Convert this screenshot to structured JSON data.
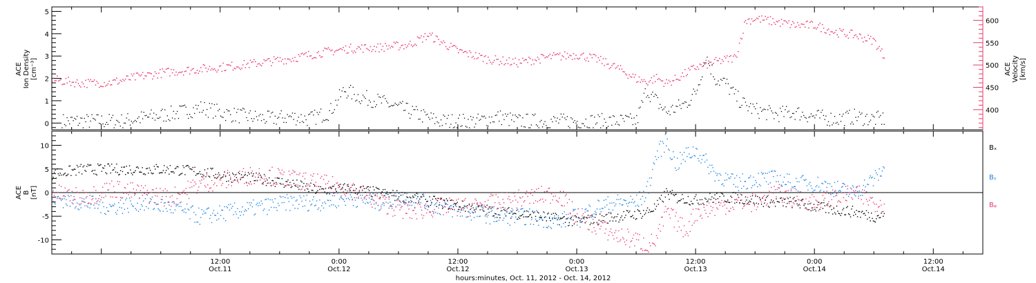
{
  "colors": {
    "density": "#000000",
    "velocity": "#e8386a",
    "bx": "#000000",
    "by": "#1a82e0",
    "bz": "#e8386a"
  },
  "x_axis": {
    "title": "hours:minutes, Oct. 11, 2012 - Oct. 14, 2012",
    "range_hours": [
      -5,
      89
    ],
    "ticks": [
      {
        "hour": 12,
        "time": "12:00",
        "date": "Oct.11"
      },
      {
        "hour": 24,
        "time": "0:00",
        "date": "Oct.12"
      },
      {
        "hour": 36,
        "time": "12:00",
        "date": "Oct.12"
      },
      {
        "hour": 48,
        "time": "0:00",
        "date": "Oct.13"
      },
      {
        "hour": 60,
        "time": "12:00",
        "date": "Oct.13"
      },
      {
        "hour": 72,
        "time": "0:00",
        "date": "Oct.14"
      },
      {
        "hour": 84,
        "time": "12:00",
        "date": "Oct.14"
      }
    ],
    "data_end_hour": 79
  },
  "chart_data": [
    {
      "type": "scatter",
      "panel": "top",
      "left_axis": {
        "label_lines": [
          "ACE",
          "Ion Density",
          "[cm⁻³]"
        ],
        "ylim": [
          -0.3,
          5.2
        ],
        "ticks": [
          "0",
          "1",
          "2",
          "3",
          "4",
          "5"
        ]
      },
      "right_axis": {
        "label_lines": [
          "ACE",
          "Velocity",
          "[km/s]"
        ],
        "ylim": [
          355,
          630
        ],
        "ticks": [
          "400",
          "450",
          "500",
          "550",
          "600"
        ]
      },
      "series": [
        {
          "key": "density",
          "axis": "left",
          "x": [
            -4,
            -1,
            2,
            5,
            8,
            10,
            13,
            15,
            17,
            19,
            21,
            23,
            24.5,
            26,
            28,
            30,
            32,
            34,
            36,
            38,
            40,
            42,
            44,
            46,
            48,
            50,
            52,
            54,
            55,
            57,
            59,
            60,
            61,
            62,
            63,
            64,
            65,
            66,
            68,
            70,
            72,
            74,
            76,
            78,
            79
          ],
          "y": [
            0.1,
            0.1,
            0.1,
            0.3,
            0.5,
            0.7,
            0.4,
            0.3,
            0.2,
            0.3,
            0.2,
            0.5,
            1.5,
            1.2,
            1.0,
            0.7,
            0.4,
            0.1,
            0.1,
            0.1,
            0.3,
            0.1,
            0.1,
            0.1,
            0.1,
            0.1,
            0.1,
            0.1,
            1.5,
            0.5,
            0.9,
            1.4,
            3.0,
            2.0,
            1.8,
            1.2,
            0.8,
            0.6,
            0.4,
            0.5,
            0.3,
            0.2,
            0.3,
            0.2,
            0.2
          ]
        },
        {
          "key": "velocity",
          "axis": "right",
          "x": [
            -5,
            -2,
            1,
            4,
            7,
            10,
            13,
            16,
            19,
            22,
            25,
            28,
            31,
            33,
            36,
            39,
            42,
            45,
            48,
            50,
            52,
            54,
            55,
            56,
            57,
            58,
            60,
            62,
            64,
            65,
            66,
            68,
            70,
            72,
            74,
            76,
            78,
            79
          ],
          "y": [
            468,
            460,
            462,
            476,
            486,
            492,
            498,
            506,
            515,
            528,
            538,
            540,
            546,
            568,
            532,
            514,
            506,
            518,
            524,
            514,
            495,
            470,
            463,
            472,
            460,
            470,
            496,
            508,
            518,
            600,
            605,
            598,
            590,
            590,
            575,
            568,
            555,
            520
          ]
        }
      ]
    },
    {
      "type": "scatter",
      "panel": "bottom",
      "left_axis": {
        "label_lines": [
          "ACE",
          "B",
          "[nT]"
        ],
        "ylim": [
          -13,
          13
        ],
        "ticks": [
          "-10",
          "-5",
          "0",
          "5",
          "10"
        ]
      },
      "zero_line": true,
      "series": [
        {
          "key": "bx",
          "name": "Bₓ",
          "x": [
            -5,
            -2,
            1,
            4,
            7,
            10,
            13,
            16,
            19,
            22,
            25,
            28,
            31,
            34,
            37,
            40,
            43,
            46,
            48,
            50,
            52,
            54,
            55,
            56,
            57,
            58,
            60,
            62,
            64,
            66,
            68,
            70,
            72,
            74,
            76,
            78,
            79
          ],
          "y": [
            4,
            5,
            5,
            5,
            5,
            4.5,
            3.5,
            3,
            2,
            0.5,
            1,
            0,
            -1,
            -2,
            -3,
            -4,
            -4.5,
            -5.5,
            -6,
            -5.5,
            -5,
            -4.5,
            -4,
            -3,
            0,
            -1,
            -1.5,
            -1,
            -1,
            -1.5,
            -2,
            -2,
            -3,
            -3.5,
            -4,
            -5,
            -4.5
          ]
        },
        {
          "key": "by",
          "name": "Bᵧ",
          "x": [
            -5,
            -2,
            1,
            4,
            7,
            10,
            13,
            16,
            19,
            22,
            25,
            28,
            31,
            34,
            37,
            40,
            43,
            46,
            48,
            50,
            52,
            54,
            55,
            56,
            57,
            58,
            59,
            60,
            62,
            64,
            66,
            68,
            70,
            72,
            74,
            76,
            78,
            79
          ],
          "y": [
            -1,
            -2,
            -3,
            -2,
            -3,
            -5,
            -4,
            -3,
            -2,
            -2,
            -1,
            -2,
            -1,
            -3,
            -4,
            -5,
            -5,
            -6,
            -5,
            -3,
            -2,
            -2,
            0,
            8,
            11,
            6,
            8,
            9,
            4,
            2,
            3,
            3,
            2,
            2,
            1,
            0,
            3,
            5
          ]
        },
        {
          "key": "bz",
          "name": "Bᵩ",
          "x": [
            -5,
            -2,
            1,
            4,
            7,
            10,
            13,
            16,
            19,
            22,
            25,
            28,
            31,
            34,
            37,
            40,
            43,
            46,
            48,
            50,
            52,
            54,
            55,
            56,
            57,
            58,
            59,
            60,
            62,
            64,
            66,
            68,
            70,
            72,
            74,
            76,
            78,
            79
          ],
          "y": [
            0,
            -1,
            1,
            0,
            -1,
            2,
            3,
            4,
            3,
            2,
            1,
            -2,
            -4,
            -3,
            -3,
            -2,
            -1,
            0,
            -5,
            -7,
            -9,
            -10,
            -11,
            -10,
            -4,
            -6,
            -8,
            -4,
            -3,
            -2,
            -2,
            0,
            -1,
            -2,
            -1,
            0,
            -2,
            -2
          ]
        }
      ]
    }
  ]
}
